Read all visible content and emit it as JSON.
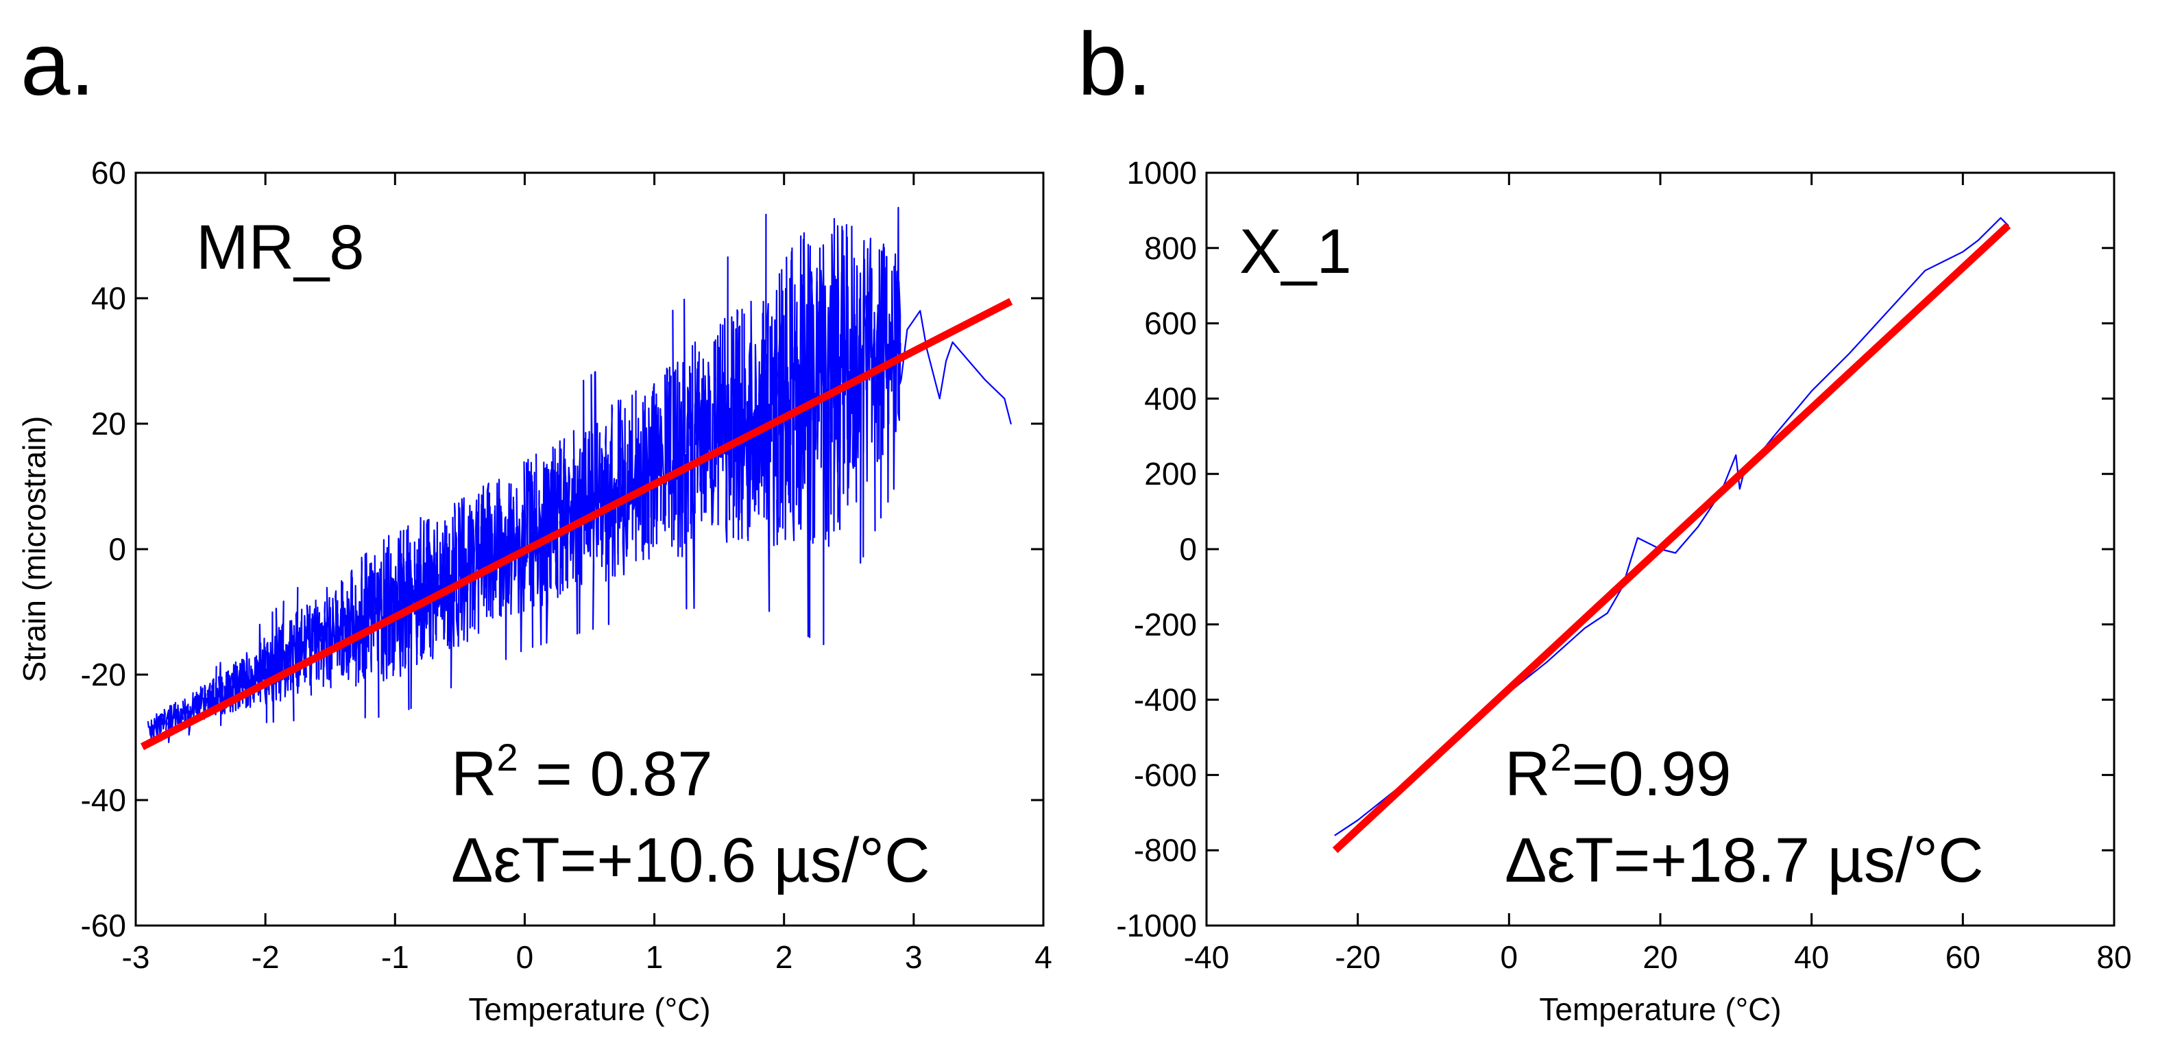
{
  "chart_data": [
    {
      "type": "line",
      "panel_label": "a.",
      "title": "MR_8",
      "title_color": "#0000ff",
      "xlabel": "Temperature (°C)",
      "ylabel": "Strain (microstrain)",
      "xlim": [
        -3,
        4
      ],
      "ylim": [
        -60,
        60
      ],
      "xticks": [
        -3,
        -2,
        -1,
        0,
        1,
        2,
        3,
        4
      ],
      "yticks": [
        -60,
        -40,
        -20,
        0,
        20,
        40,
        60
      ],
      "xtick_labels": [
        "-3",
        "-2",
        "-1",
        "0",
        "1",
        "2",
        "3",
        "4"
      ],
      "ytick_labels": [
        "-60",
        "-40",
        "-20",
        "0",
        "20",
        "40",
        "60"
      ],
      "r2_prefix": "R",
      "r2_sup": "2",
      "r2_suffix": " = 0.87",
      "slope_text": "ΔεT=+10.6 µs/°C",
      "series": [
        {
          "name": "measured strain",
          "color": "#0000ff",
          "noisy": true,
          "trend_start": [
            -2.9,
            -29
          ],
          "trend_end": [
            2.9,
            33
          ],
          "noise_profile": [
            [
              -2.9,
              2
            ],
            [
              -2.4,
              3
            ],
            [
              -1.6,
              8
            ],
            [
              -1.0,
              12
            ],
            [
              0.0,
              12
            ],
            [
              1.0,
              15
            ],
            [
              1.8,
              20
            ],
            [
              2.3,
              28
            ],
            [
              2.9,
              14
            ]
          ],
          "tail": [
            [
              2.95,
              35
            ],
            [
              3.05,
              38
            ],
            [
              3.1,
              32
            ],
            [
              3.2,
              24
            ],
            [
              3.25,
              30
            ],
            [
              3.3,
              33
            ],
            [
              3.55,
              27
            ],
            [
              3.7,
              24
            ],
            [
              3.75,
              20
            ]
          ]
        },
        {
          "name": "linear fit",
          "color": "#ff0000",
          "x": [
            -2.95,
            3.75
          ],
          "y": [
            -31.5,
            39.5
          ]
        }
      ]
    },
    {
      "type": "line",
      "panel_label": "b.",
      "title": "X_1",
      "title_color": "#000000",
      "xlabel": "Temperature (°C)",
      "ylabel": "",
      "xlim": [
        -40,
        80
      ],
      "ylim": [
        -1000,
        1000
      ],
      "xticks": [
        -40,
        -20,
        0,
        20,
        40,
        60,
        80
      ],
      "yticks": [
        -1000,
        -800,
        -600,
        -400,
        -200,
        0,
        200,
        400,
        600,
        800,
        1000
      ],
      "xtick_labels": [
        "-40",
        "-20",
        "0",
        "20",
        "40",
        "60",
        "80"
      ],
      "ytick_labels": [
        "-1000",
        "-800",
        "-600",
        "-400",
        "-200",
        "0",
        "200",
        "400",
        "600",
        "800",
        "1000"
      ],
      "r2_prefix": "R",
      "r2_sup": "2",
      "r2_suffix": "=0.99",
      "slope_text": "ΔεT=+18.7 µs/°C",
      "series": [
        {
          "name": "measured strain",
          "color": "#0000ff",
          "x": [
            -23,
            -20,
            -15,
            -10,
            -5,
            0,
            5,
            10,
            13,
            15,
            17,
            19,
            20,
            22,
            25,
            28,
            30,
            30.5,
            31,
            35,
            40,
            45,
            50,
            55,
            60,
            62,
            64,
            65,
            66
          ],
          "y": [
            -760,
            -720,
            -640,
            -560,
            -470,
            -380,
            -300,
            -210,
            -170,
            -100,
            30,
            10,
            0,
            -10,
            60,
            150,
            250,
            160,
            200,
            300,
            420,
            520,
            630,
            740,
            790,
            820,
            860,
            880,
            860
          ]
        },
        {
          "name": "linear fit",
          "color": "#ff0000",
          "x": [
            -23,
            66
          ],
          "y": [
            -800,
            860
          ]
        }
      ]
    }
  ]
}
